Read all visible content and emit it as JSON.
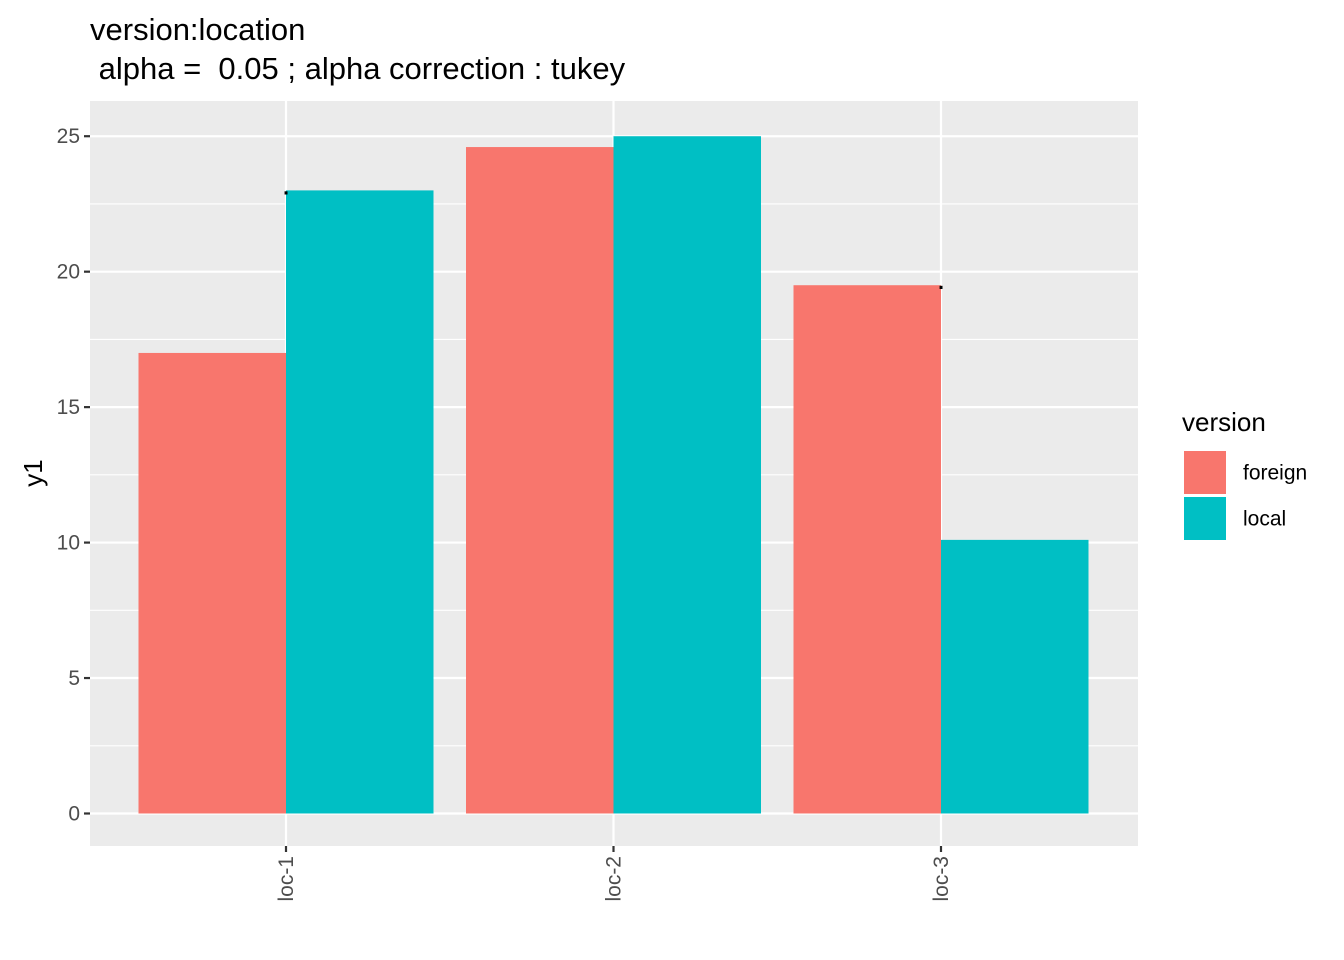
{
  "chart_data": {
    "type": "bar",
    "title": "version:location",
    "subtitle": " alpha =  0.05 ; alpha correction : tukey",
    "xlabel": "",
    "ylabel": "y1",
    "categories": [
      "loc-1",
      "loc-2",
      "loc-3"
    ],
    "series": [
      {
        "name": "foreign",
        "color": "#F8766D",
        "values": [
          17.0,
          24.6,
          19.5
        ]
      },
      {
        "name": "local",
        "color": "#00BFC4",
        "values": [
          23.0,
          25.0,
          10.1
        ]
      }
    ],
    "significance_labels": [
      {
        "category": "loc-1",
        "text": "."
      },
      {
        "category": "loc-2",
        "text": ""
      },
      {
        "category": "loc-3",
        "text": "."
      }
    ],
    "ylim": [
      -1.2,
      26.3
    ],
    "y_ticks": [
      0,
      5,
      10,
      15,
      20,
      25
    ],
    "x_tick_rotation_degrees": -90,
    "grid": true,
    "legend": {
      "title": "version",
      "position": "right"
    },
    "panel_background": "#EBEBEB",
    "grid_color": "#FFFFFF"
  }
}
